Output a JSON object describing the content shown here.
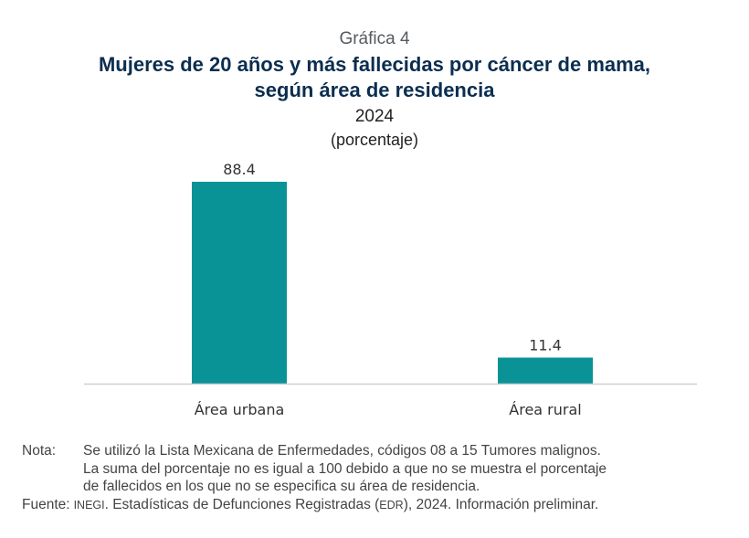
{
  "header": {
    "figure_number": "Gráfica 4",
    "title_line1": "Mujeres de 20 años y más fallecidas por cáncer de mama,",
    "title_line2": "según área de residencia",
    "year": "2024",
    "unit": "(porcentaje)"
  },
  "colors": {
    "bar": "#0a9396",
    "title": "#0b2e4f",
    "axis": "#d0d0d0"
  },
  "chart_data": {
    "type": "bar",
    "title": "Mujeres de 20 años y más fallecidas por cáncer de mama, según área de residencia",
    "subtitle": "2024 (porcentaje)",
    "categories": [
      "Área urbana",
      "Área rural"
    ],
    "values": [
      88.4,
      11.4
    ],
    "value_labels": [
      "88.4",
      "11.4"
    ],
    "xlabel": "",
    "ylabel": "",
    "ylim": [
      0,
      100
    ],
    "grid": false,
    "legend": "none"
  },
  "notes": {
    "nota_label": "Nota:",
    "nota_lines": [
      "Se utilizó la Lista Mexicana de Enfermedades, códigos 08 a 15 Tumores malignos.",
      "La suma del porcentaje no es igual a 100 debido a que no se muestra el porcentaje",
      "de fallecidos en los que no se especifica su área de residencia."
    ],
    "fuente_label": "Fuente:",
    "fuente_org": "INEGI",
    "fuente_text1": ". Estadísticas de Defunciones Registradas (",
    "fuente_abbr": "EDR",
    "fuente_text2": "), 2024. Información preliminar."
  }
}
